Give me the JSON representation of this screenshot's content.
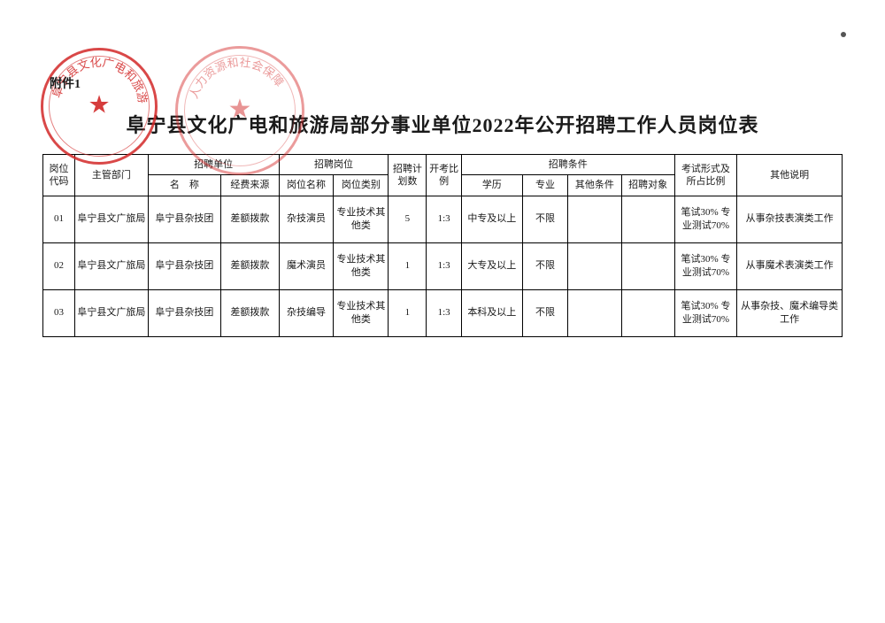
{
  "attachment_label": "附件1",
  "title": "阜宁县文化广电和旅游局部分事业单位2022年公开招聘工作人员岗位表",
  "seals": {
    "left_text": "阜宁县文化广电和旅游局",
    "right_text": "人力资源和社会保障"
  },
  "table": {
    "col_widths_pct": [
      4.2,
      9.6,
      9.6,
      7.6,
      7.2,
      7.2,
      5.0,
      4.6,
      8.0,
      6.0,
      7.0,
      7.0,
      8.2,
      13.8
    ],
    "header": {
      "r1": {
        "code": "岗位代码",
        "dept": "主管部门",
        "unit_group": "招聘单位",
        "post_group": "招聘岗位",
        "plan": "招聘计划数",
        "ratio": "开考比例",
        "cond_group": "招聘条件",
        "exam": "考试形式及所占比例",
        "remark": "其他说明"
      },
      "r2": {
        "unit_name": "名　称",
        "fund": "经费来源",
        "post_name": "岗位名称",
        "post_type": "岗位类别",
        "edu": "学历",
        "major": "专业",
        "other_cond": "其他条件",
        "target": "招聘对象"
      }
    },
    "rows": [
      {
        "code": "01",
        "dept": "阜宁县文广旅局",
        "unit_name": "阜宁县杂技团",
        "fund": "差额拨款",
        "post_name": "杂技演员",
        "post_type": "专业技术其他类",
        "plan": "5",
        "ratio": "1:3",
        "edu": "中专及以上",
        "major": "不限",
        "other_cond": "",
        "target": "",
        "exam": "笔试30% 专业测试70%",
        "remark": "从事杂技表演类工作"
      },
      {
        "code": "02",
        "dept": "阜宁县文广旅局",
        "unit_name": "阜宁县杂技团",
        "fund": "差额拨款",
        "post_name": "魔术演员",
        "post_type": "专业技术其他类",
        "plan": "1",
        "ratio": "1:3",
        "edu": "大专及以上",
        "major": "不限",
        "other_cond": "",
        "target": "",
        "exam": "笔试30% 专业测试70%",
        "remark": "从事魔术表演类工作"
      },
      {
        "code": "03",
        "dept": "阜宁县文广旅局",
        "unit_name": "阜宁县杂技团",
        "fund": "差额拨款",
        "post_name": "杂技编导",
        "post_type": "专业技术其他类",
        "plan": "1",
        "ratio": "1:3",
        "edu": "本科及以上",
        "major": "不限",
        "other_cond": "",
        "target": "",
        "exam": "笔试30% 专业测试70%",
        "remark": "从事杂技、魔术编导类工作"
      }
    ]
  },
  "colors": {
    "seal": "#d22828",
    "border": "#000000",
    "text": "#1a1a1a",
    "background": "#ffffff"
  }
}
